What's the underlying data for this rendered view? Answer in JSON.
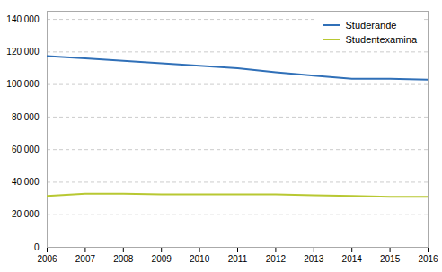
{
  "chart_data": {
    "type": "line",
    "x": [
      2006,
      2007,
      2008,
      2009,
      2010,
      2011,
      2012,
      2013,
      2014,
      2015,
      2016
    ],
    "series": [
      {
        "name": "Studerande",
        "color": "#3070b8",
        "values": [
          117500,
          116000,
          114500,
          113000,
          111500,
          110000,
          107500,
          105500,
          103500,
          103500,
          103000
        ]
      },
      {
        "name": "Studentexamina",
        "color": "#b8c832",
        "values": [
          31500,
          33000,
          33000,
          32500,
          32500,
          32500,
          32500,
          32000,
          31500,
          31000,
          31000
        ]
      }
    ],
    "xlim": [
      2006,
      2016
    ],
    "xticks": [
      2006,
      2007,
      2008,
      2009,
      2010,
      2011,
      2012,
      2013,
      2014,
      2015,
      2016
    ],
    "ylim": [
      0,
      145000
    ],
    "yticks": [
      0,
      {
        "value": 20000,
        "label": "20 000"
      },
      {
        "value": 40000,
        "label": "40 000"
      },
      {
        "value": 60000,
        "label": "60 000"
      },
      {
        "value": 80000,
        "label": "80 000"
      },
      {
        "value": 100000,
        "label": "100 000"
      },
      {
        "value": 120000,
        "label": "120 000"
      },
      {
        "value": 140000,
        "label": "140 000"
      }
    ],
    "grid": true,
    "legend": "upper right"
  }
}
